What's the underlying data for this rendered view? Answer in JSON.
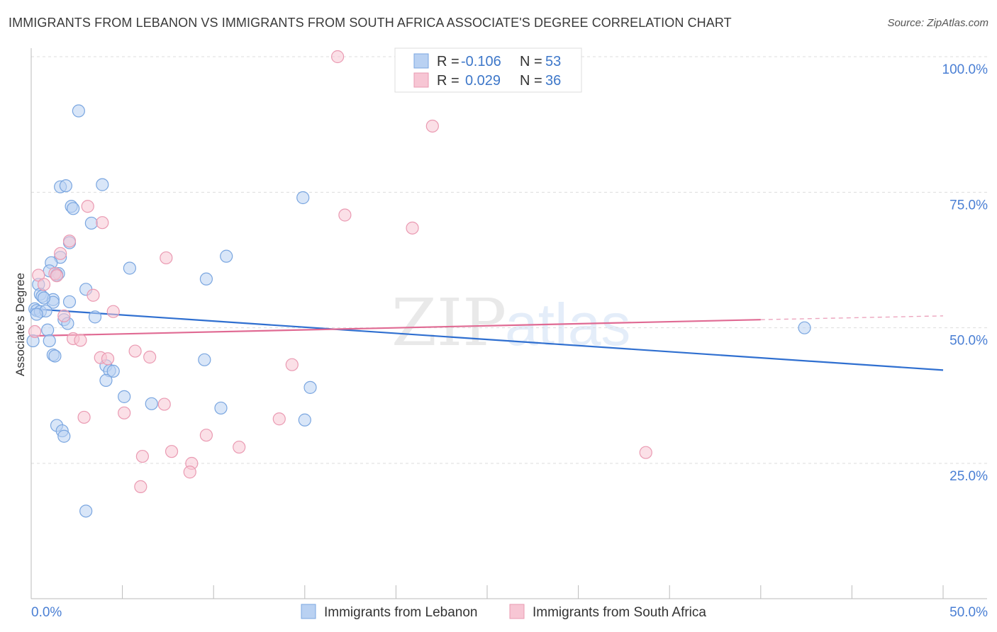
{
  "title": "IMMIGRANTS FROM LEBANON VS IMMIGRANTS FROM SOUTH AFRICA ASSOCIATE'S DEGREE CORRELATION CHART",
  "source": "Source: ZipAtlas.com",
  "watermark": {
    "zip": "ZIP",
    "atlas": "atlas"
  },
  "legend_top": {
    "rows": [
      {
        "r_label": "R =",
        "r_value": "-0.106",
        "n_label": "N =",
        "n_value": "53"
      },
      {
        "r_label": "R =",
        "r_value": "0.029",
        "n_label": "N =",
        "n_value": "36"
      }
    ]
  },
  "colors": {
    "lebanon_fill": "#b9d1f2",
    "lebanon_stroke": "#7aa6e0",
    "lebanon_line": "#2f6fd0",
    "safrica_fill": "#f7c6d4",
    "safrica_stroke": "#ea9ab2",
    "safrica_line": "#e06a93",
    "grid": "#dddddd",
    "axis_text": "#4a7fd4"
  },
  "chart_data": {
    "type": "scatter",
    "title": "IMMIGRANTS FROM LEBANON VS IMMIGRANTS FROM SOUTH AFRICA ASSOCIATE'S DEGREE CORRELATION CHART",
    "xlabel": "",
    "ylabel": "Associate's Degree",
    "xlim": [
      0,
      50
    ],
    "ylim": [
      0,
      102
    ],
    "x_ticks": [
      0,
      5,
      10,
      15,
      20,
      25,
      30,
      35,
      40,
      45,
      50
    ],
    "x_tick_labels": {
      "0": "0.0%",
      "50": "50.0%"
    },
    "y_ticks": [
      25,
      50,
      75,
      100
    ],
    "y_tick_labels": [
      "25.0%",
      "50.0%",
      "75.0%",
      "100.0%"
    ],
    "series": [
      {
        "name": "Immigrants from Lebanon",
        "r": -0.106,
        "n": 53,
        "trend": {
          "x0": 0,
          "y0": 53.5,
          "x1": 50,
          "y1": 42.2
        },
        "points": [
          [
            2.6,
            90.0
          ],
          [
            1.6,
            76.0
          ],
          [
            1.9,
            76.2
          ],
          [
            3.9,
            76.4
          ],
          [
            2.2,
            72.4
          ],
          [
            2.3,
            72.0
          ],
          [
            3.3,
            69.3
          ],
          [
            2.1,
            65.7
          ],
          [
            1.6,
            63.0
          ],
          [
            1.1,
            62.0
          ],
          [
            1.0,
            60.5
          ],
          [
            1.5,
            60.0
          ],
          [
            0.4,
            58.0
          ],
          [
            0.5,
            56.2
          ],
          [
            0.6,
            55.8
          ],
          [
            1.2,
            55.2
          ],
          [
            1.2,
            54.7
          ],
          [
            2.1,
            54.8
          ],
          [
            3.0,
            57.1
          ],
          [
            0.2,
            53.5
          ],
          [
            0.3,
            53.2
          ],
          [
            0.5,
            53.0
          ],
          [
            0.8,
            53.1
          ],
          [
            1.8,
            51.5
          ],
          [
            2.0,
            50.8
          ],
          [
            3.5,
            52.0
          ],
          [
            0.9,
            49.6
          ],
          [
            1.0,
            47.6
          ],
          [
            0.1,
            47.6
          ],
          [
            1.2,
            45.0
          ],
          [
            1.3,
            44.8
          ],
          [
            4.1,
            43.0
          ],
          [
            4.3,
            42.1
          ],
          [
            4.5,
            42.0
          ],
          [
            4.1,
            40.3
          ],
          [
            5.4,
            61.0
          ],
          [
            9.6,
            59.0
          ],
          [
            10.7,
            63.2
          ],
          [
            5.1,
            37.3
          ],
          [
            6.6,
            36.0
          ],
          [
            9.5,
            44.1
          ],
          [
            10.4,
            35.2
          ],
          [
            14.9,
            74.0
          ],
          [
            15.3,
            39.0
          ],
          [
            15.0,
            33.0
          ],
          [
            1.4,
            32.0
          ],
          [
            1.7,
            31.0
          ],
          [
            1.8,
            30.0
          ],
          [
            3.0,
            16.2
          ],
          [
            42.4,
            50.0
          ],
          [
            0.3,
            52.5
          ],
          [
            0.7,
            55.5
          ],
          [
            1.4,
            59.8
          ]
        ]
      },
      {
        "name": "Immigrants from South Africa",
        "r": 0.029,
        "n": 36,
        "trend": {
          "x0": 0,
          "y0": 48.5,
          "x1": 40,
          "y1": 51.5,
          "dash_x1": 50,
          "dash_y1": 52.2
        },
        "points": [
          [
            16.8,
            100.0
          ],
          [
            22.0,
            87.2
          ],
          [
            17.2,
            70.8
          ],
          [
            20.9,
            68.4
          ],
          [
            3.1,
            72.4
          ],
          [
            3.9,
            69.4
          ],
          [
            2.1,
            66.0
          ],
          [
            1.6,
            63.7
          ],
          [
            7.4,
            62.9
          ],
          [
            0.4,
            59.7
          ],
          [
            1.3,
            60.0
          ],
          [
            1.4,
            59.6
          ],
          [
            0.7,
            58.0
          ],
          [
            3.4,
            56.0
          ],
          [
            1.8,
            52.2
          ],
          [
            4.5,
            53.0
          ],
          [
            0.2,
            49.3
          ],
          [
            2.3,
            48.0
          ],
          [
            2.7,
            47.7
          ],
          [
            3.8,
            44.5
          ],
          [
            4.2,
            44.3
          ],
          [
            5.7,
            45.7
          ],
          [
            6.5,
            44.6
          ],
          [
            14.3,
            43.2
          ],
          [
            7.3,
            35.9
          ],
          [
            5.1,
            34.3
          ],
          [
            2.9,
            33.5
          ],
          [
            13.6,
            33.2
          ],
          [
            9.6,
            30.2
          ],
          [
            11.4,
            28.0
          ],
          [
            7.7,
            27.2
          ],
          [
            6.1,
            26.3
          ],
          [
            8.8,
            25.0
          ],
          [
            8.7,
            23.4
          ],
          [
            6.0,
            20.7
          ],
          [
            33.7,
            27.0
          ]
        ]
      }
    ]
  },
  "legend_bottom": [
    {
      "label": "Immigrants from Lebanon"
    },
    {
      "label": "Immigrants from South Africa"
    }
  ]
}
